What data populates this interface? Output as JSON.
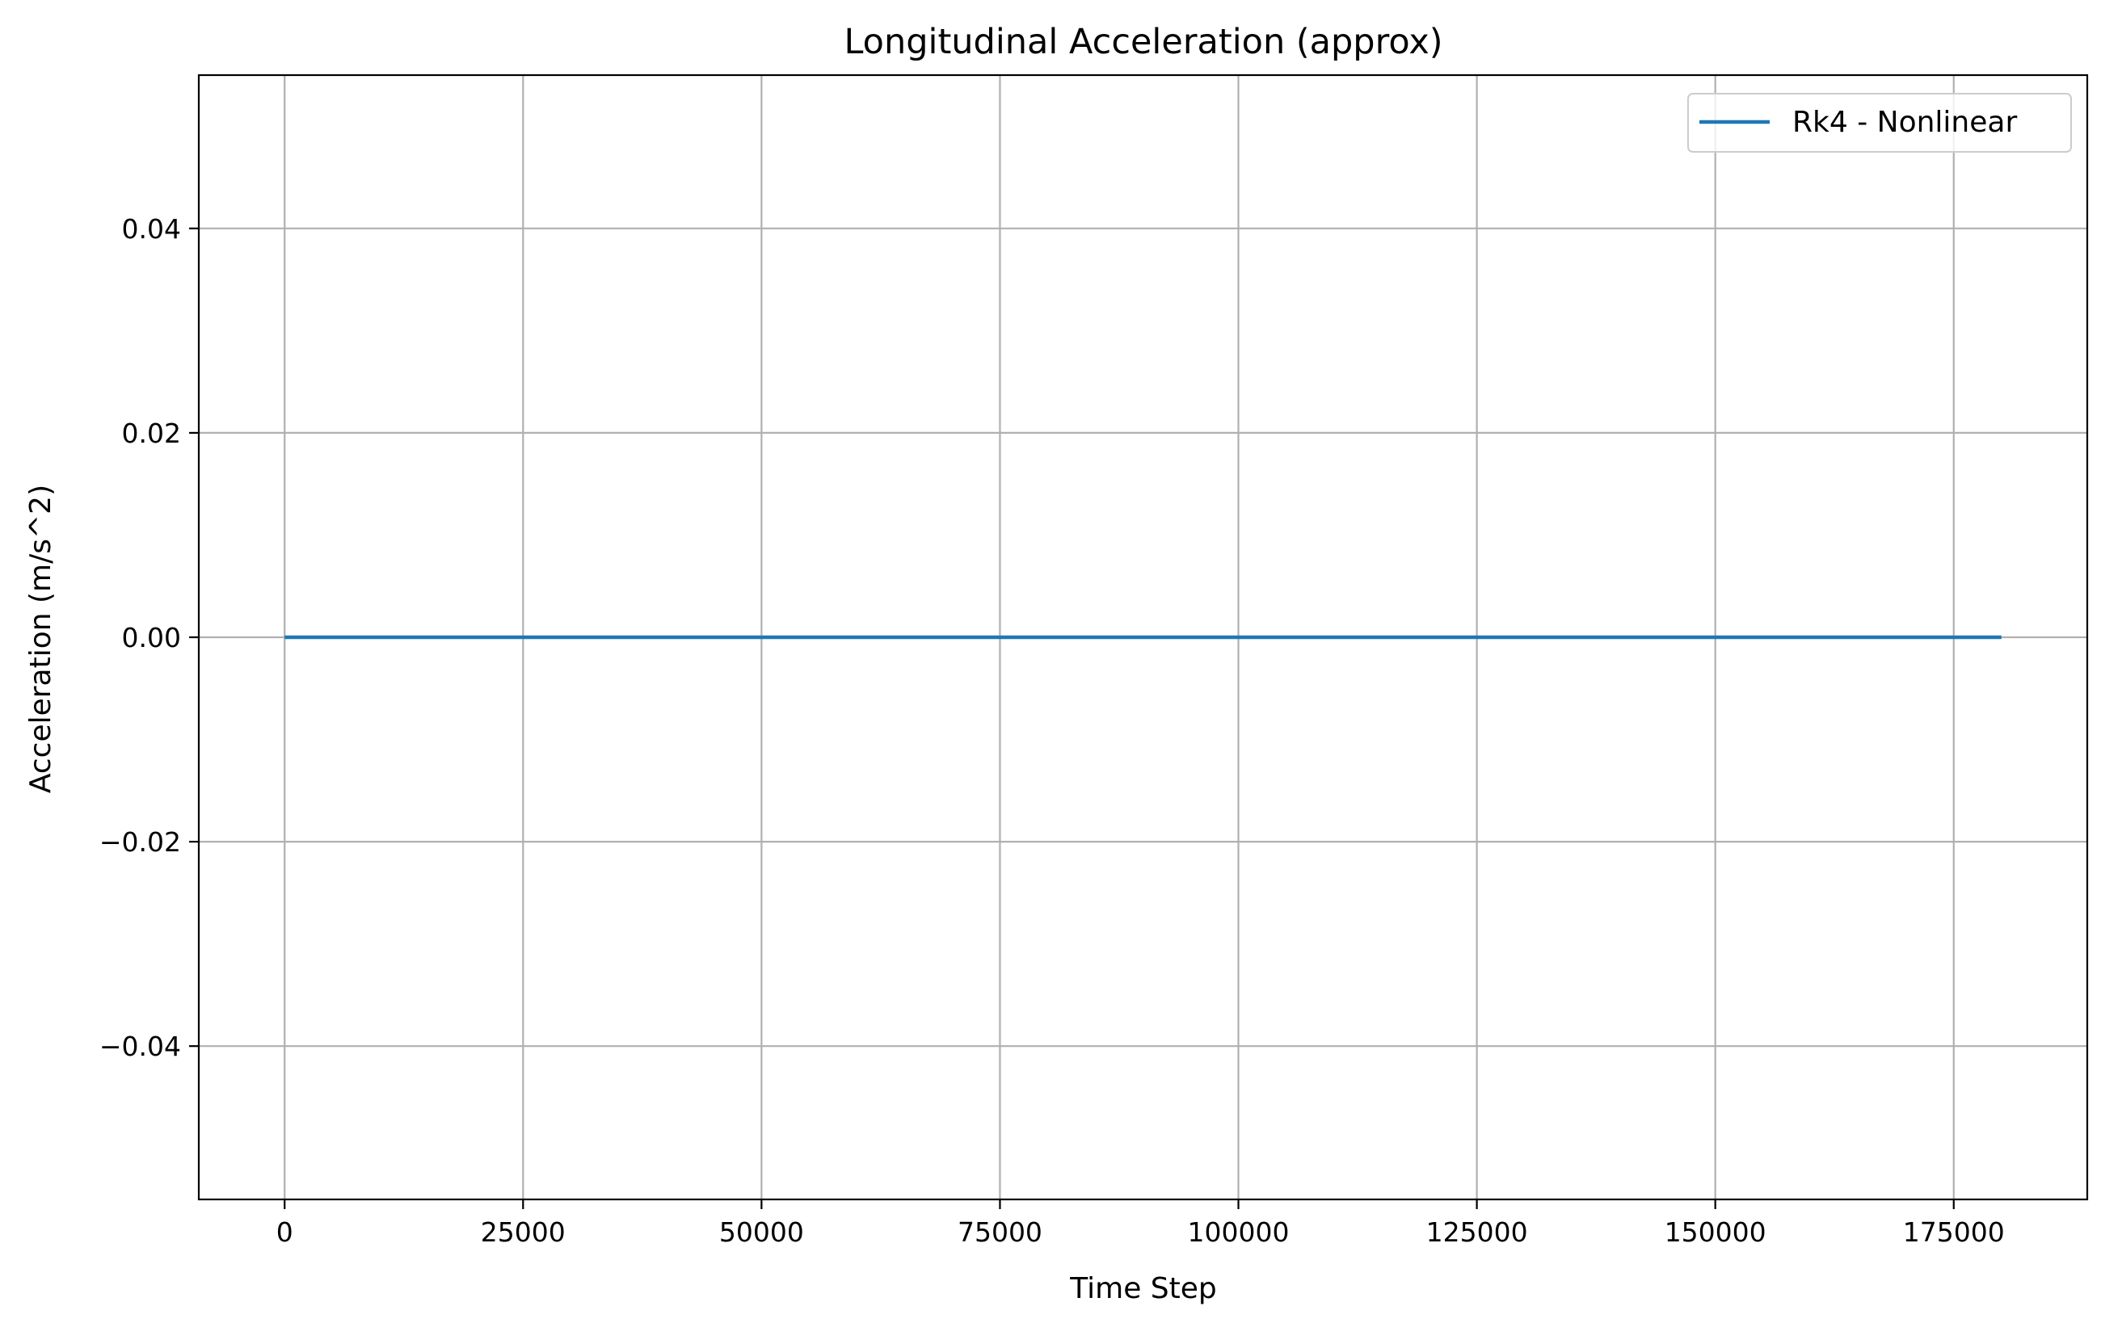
{
  "chart_data": {
    "type": "line",
    "title": "Longitudinal Acceleration (approx)",
    "xlabel": "Time Step",
    "ylabel": "Acceleration (m/s^2)",
    "xlim": [
      -9000,
      189000
    ],
    "ylim": [
      -0.055,
      0.055
    ],
    "xticks": [
      0,
      25000,
      50000,
      75000,
      100000,
      125000,
      150000,
      175000
    ],
    "xtick_labels": [
      "0",
      "25000",
      "50000",
      "75000",
      "100000",
      "125000",
      "150000",
      "175000"
    ],
    "yticks": [
      -0.04,
      -0.02,
      0.0,
      0.02,
      0.04
    ],
    "ytick_labels": [
      "−0.04",
      "−0.02",
      "0.00",
      "0.02",
      "0.04"
    ],
    "grid": true,
    "legend_position": "top-right",
    "series": [
      {
        "name": "Rk4 - Nonlinear",
        "color": "#1f77b4",
        "x": [
          0,
          180000
        ],
        "y": [
          0.0,
          0.0
        ]
      }
    ]
  },
  "colors": {
    "grid": "#b0b0b0",
    "axes": "#000000",
    "background": "#ffffff"
  }
}
